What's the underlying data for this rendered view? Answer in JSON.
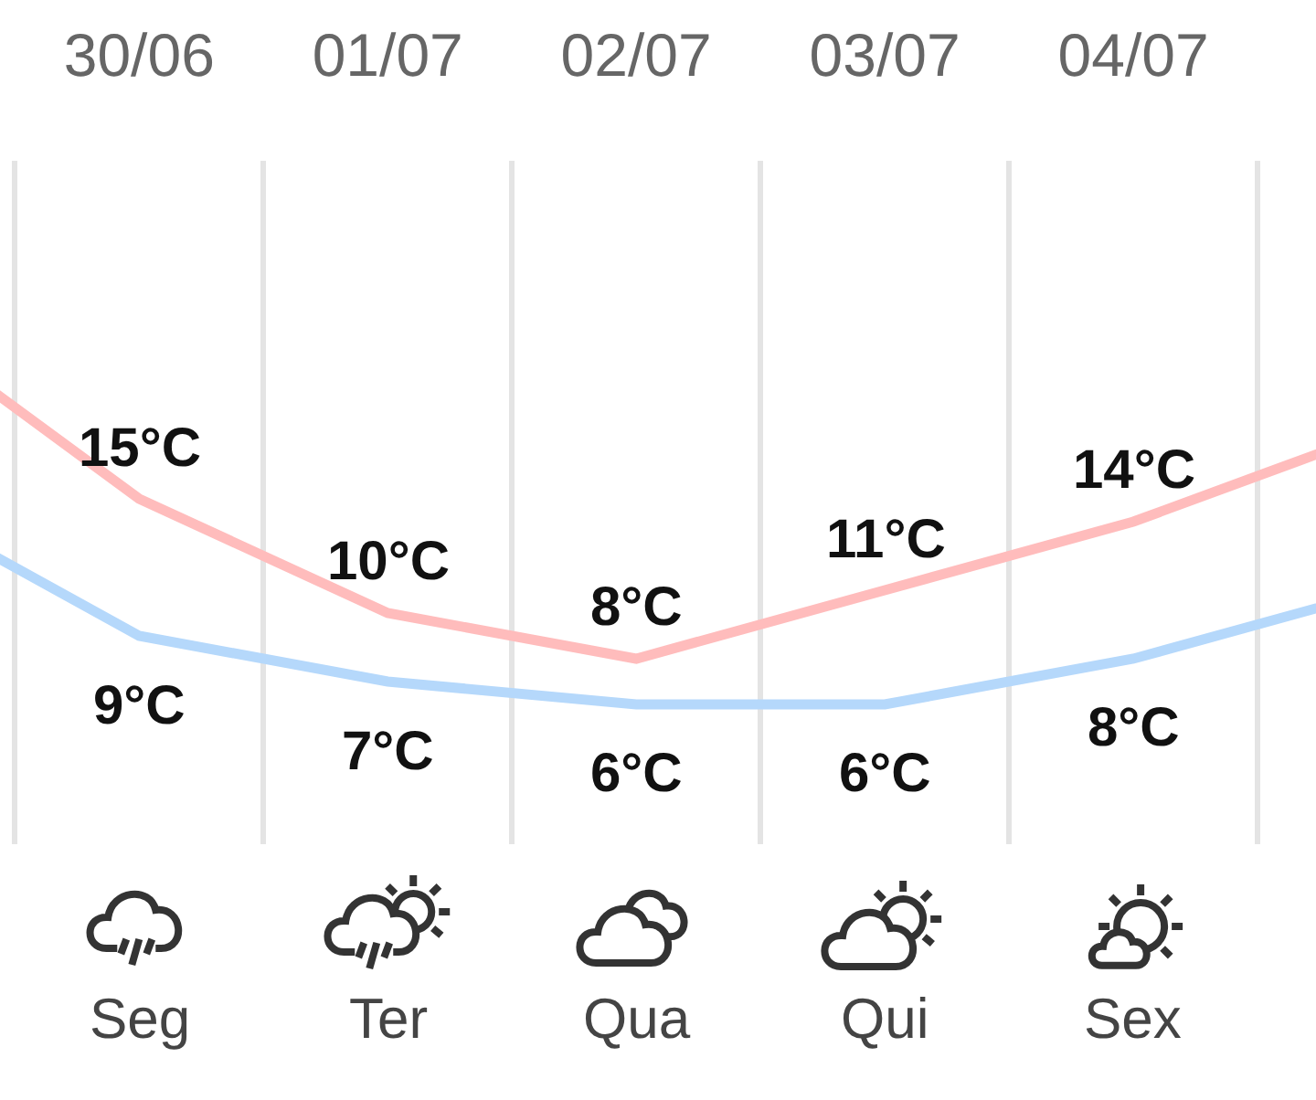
{
  "chart_data": {
    "type": "line",
    "categories": [
      null,
      "30/06",
      "01/07",
      "02/07",
      "03/07",
      "04/07",
      null
    ],
    "series": [
      {
        "color": "#ffbcbc",
        "values": [
          23,
          15,
          10,
          8,
          11,
          14,
          18
        ],
        "value_labels": [
          null,
          "15°C",
          "10°C",
          "8°C",
          "11°C",
          "14°C",
          null
        ]
      },
      {
        "color": "#b5d8fb",
        "values": [
          15,
          9,
          7,
          6,
          6,
          8,
          11
        ],
        "value_labels": [
          null,
          "9°C",
          "7°C",
          "6°C",
          "6°C",
          "8°C",
          null
        ]
      }
    ],
    "annotations": [
      "Seg",
      "Ter",
      "Qua",
      "Qui",
      "Sex"
    ],
    "grid": "x",
    "marker": "none",
    "line_style": "solid"
  }
}
